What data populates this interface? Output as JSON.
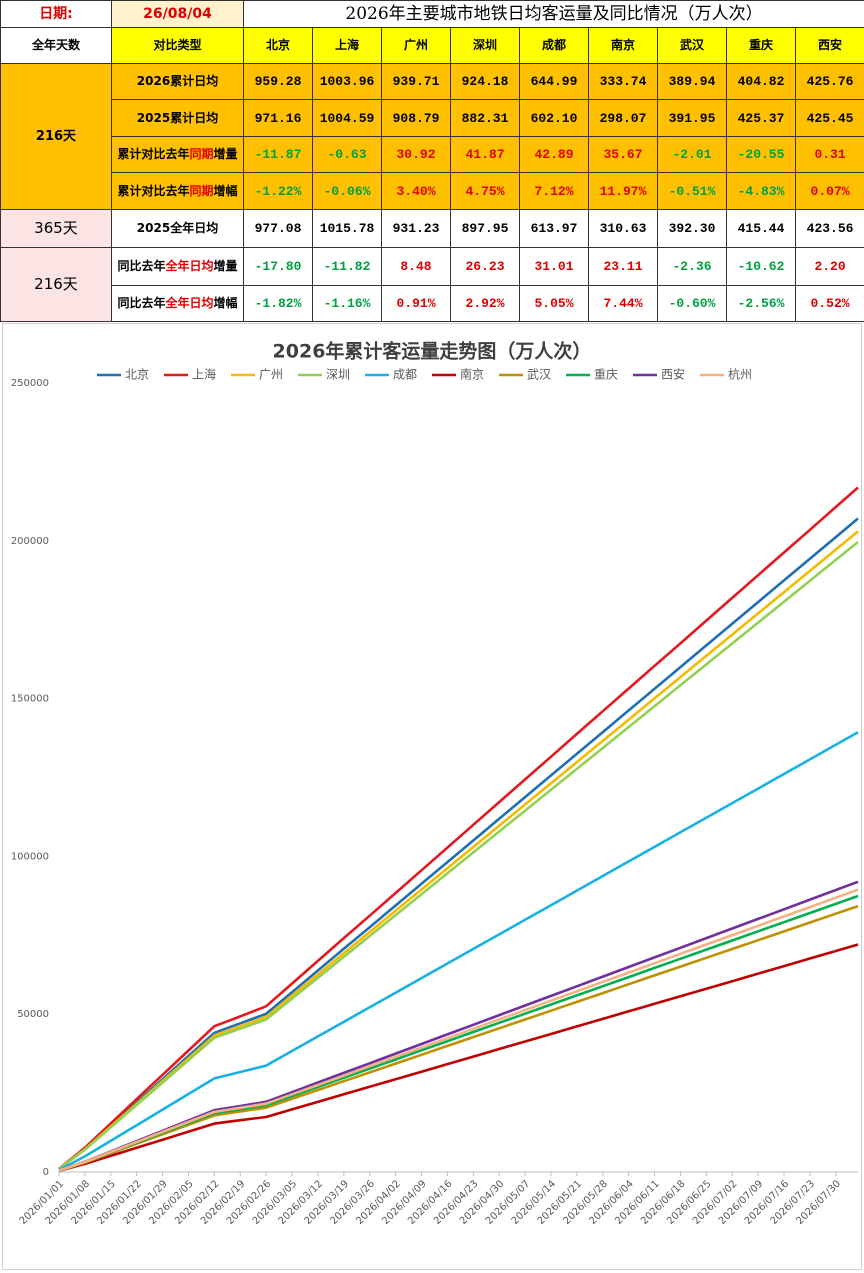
{
  "table": {
    "date_label": "日期:",
    "date": "26/08/04",
    "title": "2026年主要城市地铁日均客运量及同比情况（万人次）",
    "header": [
      "全年天数",
      "对比类型",
      "北京",
      "上海",
      "广州",
      "深圳",
      "成都",
      "南京",
      "武汉",
      "重庆",
      "西安"
    ],
    "groups": [
      {
        "days": "216天",
        "rows": [
          {
            "label": [
              "2026累计日均"
            ],
            "values": [
              "959.28",
              "1003.96",
              "939.71",
              "924.18",
              "644.99",
              "333.74",
              "389.94",
              "404.82",
              "425.76"
            ]
          },
          {
            "label": [
              "2025累计日均"
            ],
            "values": [
              "971.16",
              "1004.59",
              "908.79",
              "882.31",
              "602.10",
              "298.07",
              "391.95",
              "425.37",
              "425.45"
            ]
          },
          {
            "label": [
              "累计对比去年",
              "同期",
              "增量"
            ],
            "values": [
              "-11.87",
              "-0.63",
              "30.92",
              "41.87",
              "42.89",
              "35.67",
              "-2.01",
              "-20.55",
              "0.31"
            ]
          },
          {
            "label": [
              "累计对比去年",
              "同期",
              "增幅"
            ],
            "values": [
              "-1.22%",
              "-0.06%",
              "3.40%",
              "4.75%",
              "7.12%",
              "11.97%",
              "-0.51%",
              "-4.83%",
              "0.07%"
            ]
          }
        ]
      },
      {
        "days": "365天",
        "rows": [
          {
            "label": [
              "2025全年日均"
            ],
            "values": [
              "977.08",
              "1015.78",
              "931.23",
              "897.95",
              "613.97",
              "310.63",
              "392.30",
              "415.44",
              "423.56"
            ]
          }
        ]
      },
      {
        "days": "216天",
        "rows": [
          {
            "label": [
              "同比去年",
              "全年日均",
              "增量"
            ],
            "values": [
              "-17.80",
              "-11.82",
              "8.48",
              "26.23",
              "31.01",
              "23.11",
              "-2.36",
              "-10.62",
              "2.20"
            ]
          },
          {
            "label": [
              "同比去年",
              "全年日均",
              "增幅"
            ],
            "values": [
              "-1.82%",
              "-1.16%",
              "0.91%",
              "2.92%",
              "5.05%",
              "7.44%",
              "-0.60%",
              "-2.56%",
              "0.52%"
            ]
          }
        ]
      }
    ]
  },
  "chart_data": {
    "type": "line",
    "title": "2026年累计客运量走势图（万人次）",
    "x": [
      "2026/01/01",
      "2026/01/08",
      "2026/01/15",
      "2026/01/22",
      "2026/01/29",
      "2026/02/05",
      "2026/02/12",
      "2026/02/19",
      "2026/02/26",
      "2026/03/05",
      "2026/03/12",
      "2026/03/19",
      "2026/03/26",
      "2026/04/02",
      "2026/04/09",
      "2026/04/16",
      "2026/04/23",
      "2026/04/30",
      "2026/05/07",
      "2026/05/14",
      "2026/05/21",
      "2026/05/28",
      "2026/06/04",
      "2026/06/11",
      "2026/06/18",
      "2026/06/25",
      "2026/07/02",
      "2026/07/09",
      "2026/07/16",
      "2026/07/23",
      "2026/07/30",
      null
    ],
    "ylim": [
      0,
      250000
    ],
    "yticks": [
      0,
      50000,
      100000,
      150000,
      200000,
      250000
    ],
    "grid": false,
    "legend": "top",
    "series": [
      {
        "name": "北京",
        "color": "#1f6fb5",
        "values": [
          959,
          7350,
          14700,
          22050,
          29400,
          36750,
          44100,
          47110,
          50110,
          56980,
          63840,
          70710,
          77580,
          84450,
          91310,
          98180,
          105050,
          111910,
          118780,
          125650,
          132510,
          139380,
          146250,
          153120,
          159980,
          166850,
          173720,
          180580,
          187450,
          194320,
          201180,
          207070
        ]
      },
      {
        "name": "上海",
        "color": "#e3191f",
        "values": [
          1004,
          7700,
          15400,
          23100,
          30800,
          38500,
          46200,
          49300,
          52500,
          59700,
          66900,
          74100,
          81200,
          88400,
          95600,
          102800,
          110000,
          117200,
          124400,
          131600,
          138800,
          146000,
          153200,
          160400,
          167500,
          174700,
          181900,
          189100,
          196300,
          203500,
          210700,
          216900
        ]
      },
      {
        "name": "广州",
        "color": "#f7b900",
        "values": [
          940,
          7200,
          14410,
          21610,
          28820,
          36020,
          43230,
          46180,
          49120,
          55850,
          62580,
          69310,
          76040,
          82780,
          89500,
          96240,
          102970,
          109690,
          116430,
          123160,
          129890,
          136620,
          143350,
          150090,
          156810,
          163550,
          170280,
          177000,
          183740,
          190470,
          197200,
          202970
        ]
      },
      {
        "name": "深圳",
        "color": "#92d050",
        "values": [
          924,
          7090,
          14170,
          21260,
          28340,
          35430,
          42510,
          45410,
          48310,
          54930,
          61540,
          68160,
          74790,
          81410,
          88020,
          94650,
          101270,
          107880,
          114500,
          121130,
          127740,
          134360,
          140990,
          147610,
          154220,
          160840,
          167470,
          174080,
          180700,
          187320,
          193940,
          199620
        ]
      },
      {
        "name": "成都",
        "color": "#18b1e6",
        "values": [
          645,
          4950,
          9890,
          14840,
          19780,
          24730,
          29670,
          31700,
          33710,
          38340,
          42950,
          47570,
          52200,
          56820,
          61430,
          66060,
          70680,
          75290,
          79910,
          84540,
          89150,
          93780,
          98400,
          103020,
          107640,
          112260,
          116880,
          121490,
          126120,
          130740,
          135350,
          139320
        ]
      },
      {
        "name": "南京",
        "color": "#c00000",
        "values": [
          334,
          2560,
          5120,
          7680,
          10230,
          12790,
          15350,
          16400,
          17440,
          19830,
          22220,
          24610,
          27010,
          29400,
          31790,
          34180,
          36570,
          38960,
          41350,
          43740,
          46130,
          48520,
          50910,
          53300,
          55690,
          58080,
          60470,
          62860,
          65250,
          67640,
          70030,
          72080
        ]
      },
      {
        "name": "武汉",
        "color": "#bf9000",
        "values": [
          390,
          2990,
          5980,
          8970,
          11960,
          14950,
          17940,
          19160,
          20380,
          23180,
          25970,
          28760,
          31560,
          34350,
          37150,
          39940,
          42730,
          45530,
          48320,
          51110,
          53900,
          56700,
          59490,
          62290,
          65080,
          67870,
          70670,
          73460,
          76250,
          79050,
          81840,
          84240
        ]
      },
      {
        "name": "重庆",
        "color": "#00b050",
        "values": [
          405,
          3100,
          6210,
          9310,
          12420,
          15520,
          18620,
          19890,
          21160,
          24060,
          26960,
          29860,
          32760,
          35660,
          38560,
          41460,
          44360,
          47260,
          50160,
          53060,
          55960,
          58860,
          61760,
          64660,
          67560,
          70460,
          73360,
          76260,
          79150,
          82060,
          84960,
          87450
        ]
      },
      {
        "name": "西安",
        "color": "#7030a0",
        "values": [
          426,
          3260,
          6530,
          9790,
          13060,
          16320,
          19580,
          20920,
          22250,
          25300,
          28350,
          31400,
          34450,
          37500,
          40550,
          43600,
          46650,
          49700,
          52750,
          55800,
          58850,
          61900,
          64950,
          68000,
          71050,
          74100,
          77150,
          80200,
          83250,
          86300,
          89340,
          91960
        ]
      },
      {
        "name": "杭州",
        "color": "#f4b183",
        "values": [
          432,
          3180,
          6350,
          9530,
          12700,
          15880,
          19050,
          20350,
          21650,
          24610,
          27580,
          30550,
          33510,
          36480,
          39450,
          42410,
          45380,
          48350,
          51310,
          54280,
          57250,
          60220,
          63180,
          66150,
          69120,
          72090,
          75050,
          78010,
          80980,
          83950,
          86910,
          89450
        ]
      }
    ]
  }
}
